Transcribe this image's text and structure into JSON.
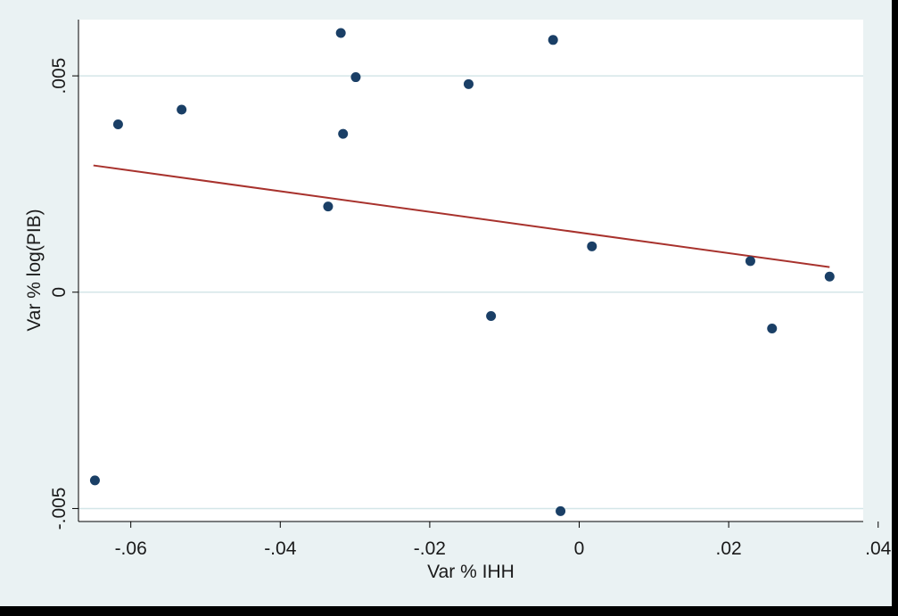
{
  "chart_data": {
    "type": "scatter",
    "title": "",
    "xlabel": "Var % IHH",
    "ylabel": "Var % log(PIB)",
    "xlim": [
      -0.067,
      0.038
    ],
    "ylim": [
      -0.0053,
      0.0063
    ],
    "xticks": [
      -0.06,
      -0.04,
      -0.02,
      0,
      0.02,
      0.04
    ],
    "xtick_labels": [
      "-.06",
      "-.04",
      "-.02",
      "0",
      ".02",
      ".04"
    ],
    "yticks": [
      -0.005,
      0,
      0.005
    ],
    "ytick_labels": [
      "-.005",
      "0",
      ".005"
    ],
    "grid": "horizontal",
    "legend": "none",
    "colors": {
      "points": "#1a3f66",
      "fit_line": "#a8322d",
      "gridline": "#d4e6e8",
      "plot_bg": "#ffffff",
      "outer_bg": "#eaf2f3"
    },
    "series": [
      {
        "x": [
          -0.0648,
          -0.0617,
          -0.0532,
          -0.0336,
          -0.0319,
          -0.0316,
          -0.0299,
          -0.0148,
          -0.0118,
          -0.0035,
          -0.0025,
          0.0017,
          0.0229,
          0.0258,
          0.0335
        ],
        "y": [
          -0.00435,
          0.00388,
          0.00422,
          0.00198,
          0.00599,
          0.00366,
          0.00497,
          0.00481,
          -0.00055,
          0.00583,
          -0.00506,
          0.00106,
          0.00072,
          -0.00084,
          0.00036
        ]
      }
    ],
    "fit_line": {
      "x": [
        -0.065,
        0.0335
      ],
      "y": [
        0.00293,
        0.00058
      ]
    }
  }
}
